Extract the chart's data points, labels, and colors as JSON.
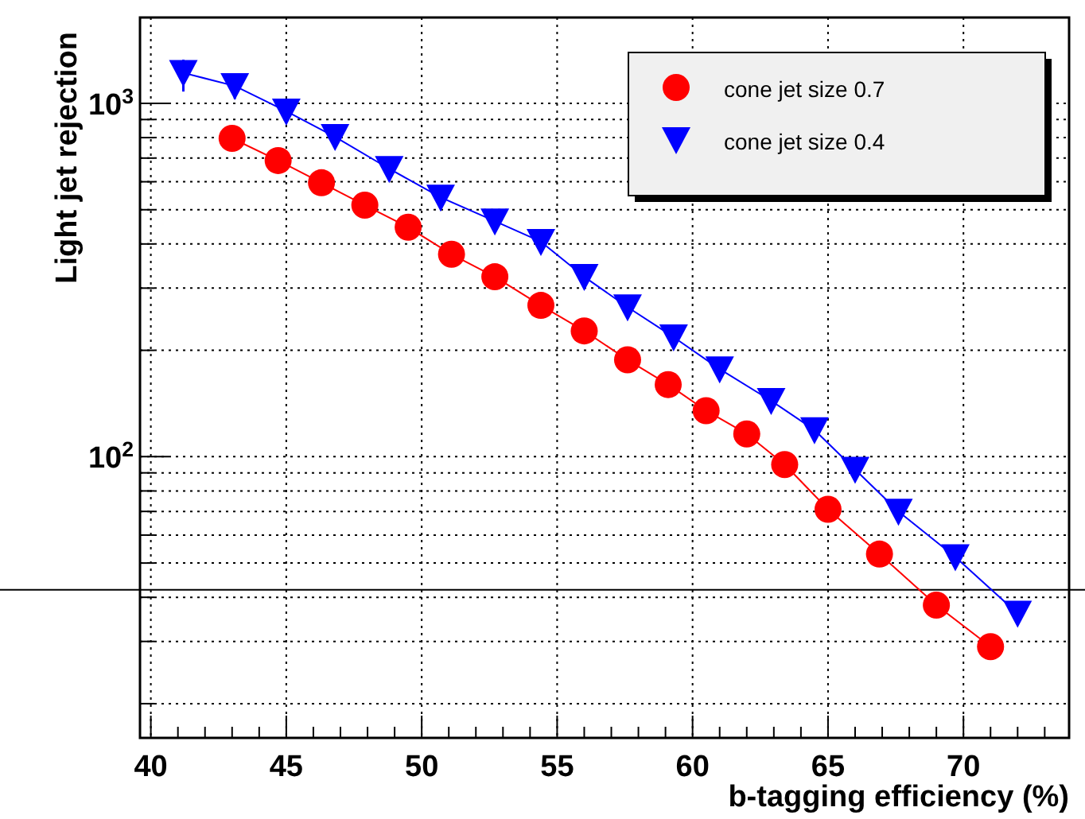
{
  "chart_data": {
    "type": "line",
    "xlabel": "b-tagging efficiency (%)",
    "ylabel": "Light jet rejection",
    "xlim": [
      39.6,
      73.9
    ],
    "ylim": [
      16,
      1750
    ],
    "log": "y",
    "grid": true,
    "legend": "top right",
    "xticks": [
      40,
      {
        "value": 41,
        "label": null
      },
      {
        "value": 42,
        "label": null
      },
      {
        "value": 43,
        "label": null
      },
      {
        "value": 44,
        "label": null
      },
      45,
      {
        "value": 46,
        "label": null
      },
      {
        "value": 47,
        "label": null
      },
      {
        "value": 48,
        "label": null
      },
      {
        "value": 49,
        "label": null
      },
      50,
      {
        "value": 51,
        "label": null
      },
      {
        "value": 52,
        "label": null
      },
      {
        "value": 53,
        "label": null
      },
      {
        "value": 54,
        "label": null
      },
      55,
      {
        "value": 56,
        "label": null
      },
      {
        "value": 57,
        "label": null
      },
      {
        "value": 58,
        "label": null
      },
      {
        "value": 59,
        "label": null
      },
      60,
      {
        "value": 61,
        "label": null
      },
      {
        "value": 62,
        "label": null
      },
      {
        "value": 63,
        "label": null
      },
      {
        "value": 64,
        "label": null
      },
      65,
      {
        "value": 66,
        "label": null
      },
      {
        "value": 67,
        "label": null
      },
      {
        "value": 68,
        "label": null
      },
      {
        "value": 69,
        "label": null
      },
      70,
      {
        "value": 71,
        "label": null
      },
      {
        "value": 72,
        "label": null
      },
      {
        "value": 73,
        "label": null
      }
    ],
    "yticks": [
      {
        "value": 20,
        "label": null
      },
      {
        "value": 30,
        "label": null
      },
      {
        "value": 40,
        "label": null
      },
      {
        "value": 50,
        "label": null
      },
      {
        "value": 60,
        "label": null
      },
      {
        "value": 70,
        "label": null
      },
      {
        "value": 80,
        "label": null
      },
      {
        "value": 90,
        "label": null
      },
      {
        "value": 100,
        "label": "10$^{2}$"
      },
      {
        "value": 200,
        "label": null
      },
      {
        "value": 300,
        "label": null
      },
      {
        "value": 400,
        "label": null
      },
      {
        "value": 500,
        "label": null
      },
      {
        "value": 600,
        "label": null
      },
      {
        "value": 700,
        "label": null
      },
      {
        "value": 800,
        "label": null
      },
      {
        "value": 900,
        "label": null
      },
      {
        "value": 1000,
        "label": "10$^{3}$"
      }
    ],
    "ref_lines": [
      {
        "axis": "y",
        "value": 42,
        "color": "#000000"
      }
    ],
    "series": [
      {
        "name": "cone jet size 0.7",
        "color": "#ff0000",
        "marker": "circle",
        "x": [
          43,
          44.7,
          46.3,
          47.9,
          49.5,
          51.1,
          52.7,
          54.4,
          56,
          57.6,
          59.1,
          60.5,
          62,
          63.4,
          65,
          66.9,
          69,
          71
        ],
        "values": [
          796,
          689,
          596,
          515,
          446,
          374,
          323,
          268,
          227,
          188,
          160,
          135,
          116,
          95,
          71,
          53,
          38,
          29
        ]
      },
      {
        "name": "cone jet size 0.4",
        "color": "#0000ff",
        "marker": "triangle",
        "x": [
          41.2,
          43.1,
          45,
          46.8,
          48.8,
          50.7,
          52.7,
          54.4,
          56,
          57.6,
          59.3,
          61,
          62.9,
          64.5,
          66,
          67.6,
          69.7,
          72
        ],
        "values": [
          1220,
          1120,
          950,
          804,
          653,
          542,
          464,
          406,
          323,
          265,
          218,
          177,
          144,
          119,
          92,
          70,
          52,
          36
        ],
        "errors": [
          [
            1080,
            1330
          ],
          [
            1030,
            1190
          ],
          null,
          null,
          null,
          null,
          null,
          null,
          null,
          null,
          null,
          null,
          null,
          null,
          null,
          null,
          null,
          null
        ]
      }
    ]
  }
}
